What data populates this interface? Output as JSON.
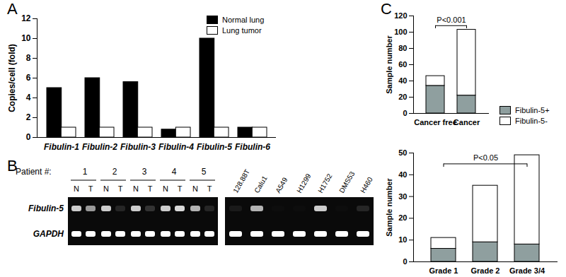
{
  "chart_data": [
    {
      "panel": "A",
      "type": "bar",
      "categories": [
        "Fibulin-1",
        "Fibulin-2",
        "Fibulin-3",
        "Fibulin-4",
        "Fibulin-5",
        "Fibulin-6"
      ],
      "series": [
        {
          "name": "Normal lung",
          "color": "#000000",
          "values": [
            5,
            6,
            5.6,
            0.8,
            10,
            1
          ]
        },
        {
          "name": "Lung tumor",
          "color": "#ffffff",
          "values": [
            1,
            1,
            1,
            1,
            1,
            1
          ]
        }
      ],
      "y_label": "Copies/cell (fold)",
      "ylim": [
        0,
        12
      ],
      "yticks": [
        0,
        2,
        4,
        6,
        8,
        10,
        12
      ],
      "legend": "top-right"
    },
    {
      "panel": "B",
      "type": "gel",
      "patient_label": "Patient #:",
      "patients": [
        "1",
        "2",
        "3",
        "4",
        "5"
      ],
      "lanes_per_patient": [
        "N",
        "T"
      ],
      "cell_lines": [
        "128.88T",
        "Calu1",
        "A549",
        "H1299",
        "H1752",
        "DMS53",
        "H460"
      ],
      "rows": [
        {
          "name": "Fibulin-5",
          "patient_intensity": [
            [
              0.8,
              0.6
            ],
            [
              0.8,
              0.15
            ],
            [
              0.8,
              0.2
            ],
            [
              0.8,
              0.85
            ],
            [
              0.7,
              0.15
            ]
          ],
          "cell_line_intensity": [
            0.1,
            0.7,
            0.05,
            0.05,
            0.8,
            0.05,
            0.15
          ]
        },
        {
          "name": "GAPDH",
          "patient_intensity": [
            [
              1,
              1
            ],
            [
              1,
              1
            ],
            [
              1,
              1
            ],
            [
              1,
              1
            ],
            [
              1,
              1
            ]
          ],
          "cell_line_intensity": [
            1,
            1,
            1,
            1,
            1,
            1,
            1
          ]
        }
      ]
    },
    {
      "panel": "C",
      "type": "bar",
      "stacked": true,
      "categories": [
        "Cancer free",
        "Cancer"
      ],
      "series": [
        {
          "name": "Fibulin-5+",
          "color": "#8f9f9f",
          "values": [
            34,
            22
          ]
        },
        {
          "name": "Fibulin-5-",
          "color": "#ffffff",
          "values": [
            12,
            81
          ]
        }
      ],
      "y_label": "Sample number",
      "ylim": [
        0,
        120
      ],
      "yticks": [
        0,
        20,
        40,
        60,
        80,
        100,
        120
      ],
      "annotations": [
        "P<0.001"
      ],
      "legend": "bottom-right"
    },
    {
      "type": "bar",
      "stacked": true,
      "categories": [
        "Grade 1",
        "Grade 2",
        "Grade 3/4"
      ],
      "series": [
        {
          "name": "Fibulin-5+",
          "color": "#8f9f9f",
          "values": [
            6,
            9,
            8
          ]
        },
        {
          "name": "Fibulin-5-",
          "color": "#ffffff",
          "values": [
            5,
            26,
            41
          ]
        }
      ],
      "y_label": "Sample number",
      "ylim": [
        0,
        50
      ],
      "yticks": [
        0,
        10,
        20,
        30,
        40,
        50
      ],
      "annotations": [
        "P<0.05"
      ]
    }
  ]
}
